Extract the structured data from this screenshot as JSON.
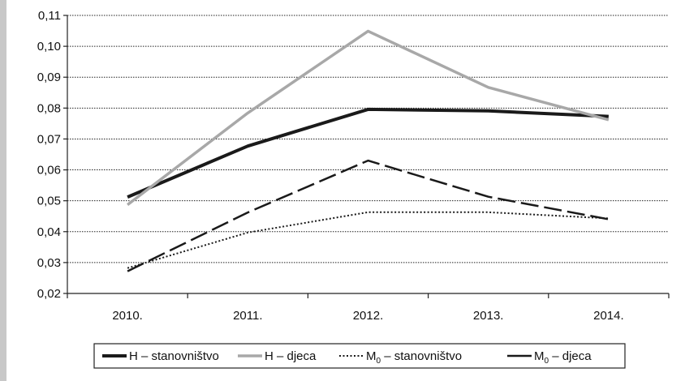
{
  "chart_data": {
    "type": "line",
    "categories": [
      "2010.",
      "2011.",
      "2012.",
      "2013.",
      "2014."
    ],
    "ylim": [
      0.02,
      0.11
    ],
    "y_ticks": [
      "0,02",
      "0,03",
      "0,04",
      "0,05",
      "0,06",
      "0,07",
      "0,08",
      "0,09",
      "0,10",
      "0,11"
    ],
    "y_tick_values": [
      0.02,
      0.03,
      0.04,
      0.05,
      0.06,
      0.07,
      0.08,
      0.09,
      0.1,
      0.11
    ],
    "grid": true,
    "legend_position": "bottom",
    "series": [
      {
        "name": "H – stanovništvo",
        "legend_main": "H – stanovništvo",
        "legend_sub": "",
        "legend_tail": "",
        "values": [
          0.0512,
          0.0677,
          0.0796,
          0.0791,
          0.0773
        ],
        "color": "#1a1a1a",
        "dash": "solid",
        "width": 4
      },
      {
        "name": "H – djeca",
        "legend_main": "H – djeca",
        "legend_sub": "",
        "legend_tail": "",
        "values": [
          0.0487,
          0.0784,
          0.1049,
          0.0867,
          0.0762
        ],
        "color": "#a8a8a8",
        "dash": "solid",
        "width": 3.5
      },
      {
        "name": "M0 – stanovništvo",
        "legend_main": "M",
        "legend_sub": "0",
        "legend_tail": " – stanovništvo",
        "values": [
          0.0282,
          0.0397,
          0.0463,
          0.0463,
          0.0443
        ],
        "color": "#1a1a1a",
        "dash": "dotted",
        "width": 2
      },
      {
        "name": "M0 – djeca",
        "legend_main": "M",
        "legend_sub": "0",
        "legend_tail": " – djeca",
        "values": [
          0.0272,
          0.0462,
          0.063,
          0.0513,
          0.044
        ],
        "color": "#1a1a1a",
        "dash": "dashed",
        "width": 2.5
      }
    ]
  }
}
